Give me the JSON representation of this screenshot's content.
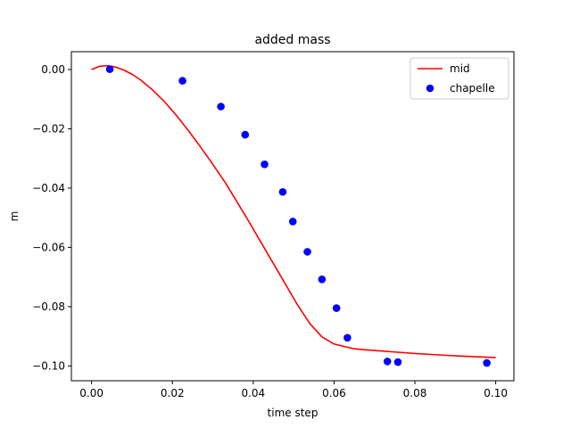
{
  "chart_data": {
    "type": "line",
    "title": "added mass",
    "xlabel": "time step",
    "ylabel": "m",
    "xlim": [
      -0.005,
      0.1045
    ],
    "ylim": [
      -0.105,
      0.006
    ],
    "x_ticks": [
      {
        "value": 0.0,
        "label": "0.00"
      },
      {
        "value": 0.02,
        "label": "0.02"
      },
      {
        "value": 0.04,
        "label": "0.04"
      },
      {
        "value": 0.06,
        "label": "0.06"
      },
      {
        "value": 0.08,
        "label": "0.08"
      },
      {
        "value": 0.1,
        "label": "0.10"
      }
    ],
    "y_ticks": [
      {
        "value": 0.0,
        "label": "0.00"
      },
      {
        "value": -0.02,
        "label": "−0.02"
      },
      {
        "value": -0.04,
        "label": "−0.04"
      },
      {
        "value": -0.06,
        "label": "−0.06"
      },
      {
        "value": -0.08,
        "label": "−0.08"
      },
      {
        "value": -0.1,
        "label": "−0.10"
      }
    ],
    "grid": false,
    "legend": "top-right",
    "series": [
      {
        "name": "mid",
        "kind": "line",
        "color": "#ff0000",
        "x": [
          0.0,
          0.002,
          0.004,
          0.006,
          0.008,
          0.01,
          0.012,
          0.015,
          0.018,
          0.021,
          0.024,
          0.027,
          0.03,
          0.033,
          0.036,
          0.039,
          0.042,
          0.045,
          0.048,
          0.051,
          0.054,
          0.057,
          0.06,
          0.063,
          0.065,
          0.067,
          0.07,
          0.075,
          0.08,
          0.085,
          0.09,
          0.095,
          0.1
        ],
        "y": [
          0.0,
          0.0011,
          0.0013,
          0.0008,
          -0.0002,
          -0.0016,
          -0.0034,
          -0.0068,
          -0.0108,
          -0.0155,
          -0.0207,
          -0.0262,
          -0.032,
          -0.038,
          -0.0447,
          -0.0515,
          -0.0585,
          -0.0655,
          -0.0725,
          -0.0795,
          -0.0857,
          -0.0902,
          -0.0926,
          -0.0936,
          -0.0942,
          -0.0945,
          -0.0948,
          -0.0953,
          -0.0958,
          -0.0962,
          -0.0966,
          -0.0969,
          -0.0972
        ]
      },
      {
        "name": "chapelle",
        "kind": "scatter",
        "color": "#0000ff",
        "x": [
          0.0045,
          0.0225,
          0.032,
          0.038,
          0.0428,
          0.0473,
          0.0498,
          0.0534,
          0.057,
          0.0606,
          0.0633,
          0.0732,
          0.0758,
          0.0978
        ],
        "y": [
          0.0001,
          -0.0038,
          -0.0125,
          -0.022,
          -0.032,
          -0.0413,
          -0.0513,
          -0.0615,
          -0.0708,
          -0.0805,
          -0.0905,
          -0.0985,
          -0.0987,
          -0.099
        ]
      }
    ]
  }
}
